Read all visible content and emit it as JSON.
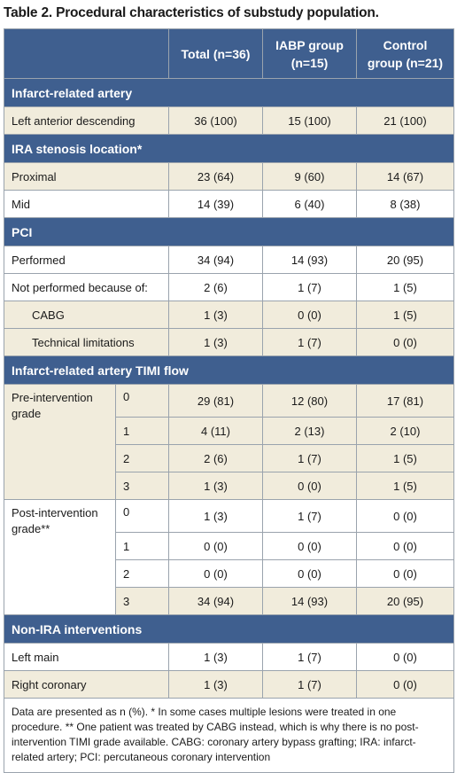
{
  "title": "Table 2. Procedural characteristics of substudy population.",
  "header": {
    "total": "Total (n=36)",
    "iabp": "IABP group (n=15)",
    "control": "Control group (n=21)"
  },
  "sections": {
    "infarct_artery": "Infarct-related artery",
    "ira_stenosis": "IRA stenosis location*",
    "pci": "PCI",
    "timi_flow": "Infarct-related artery TIMI flow",
    "non_ira": "Non-IRA interventions"
  },
  "rows": {
    "lad": {
      "label": "Left anterior descending",
      "total": "36 (100)",
      "iabp": "15 (100)",
      "control": "21 (100)"
    },
    "proximal": {
      "label": "Proximal",
      "total": "23 (64)",
      "iabp": "9 (60)",
      "control": "14 (67)"
    },
    "mid": {
      "label": "Mid",
      "total": "14 (39)",
      "iabp": "6 (40)",
      "control": "8 (38)"
    },
    "performed": {
      "label": "Performed",
      "total": "34 (94)",
      "iabp": "14 (93)",
      "control": "20 (95)"
    },
    "not_performed": {
      "label": "Not performed because of:",
      "total": "2 (6)",
      "iabp": "1 (7)",
      "control": "1 (5)"
    },
    "cabg": {
      "label": "CABG",
      "total": "1 (3)",
      "iabp": "0 (0)",
      "control": "1 (5)"
    },
    "tech": {
      "label": "Technical limitations",
      "total": "1 (3)",
      "iabp": "1 (7)",
      "control": "0 (0)"
    },
    "left_main": {
      "label": "Left main",
      "total": "1 (3)",
      "iabp": "1 (7)",
      "control": "0 (0)"
    },
    "right_coronary": {
      "label": "Right coronary",
      "total": "1 (3)",
      "iabp": "1 (7)",
      "control": "0 (0)"
    }
  },
  "timi": {
    "pre": {
      "label": "Pre-intervention grade",
      "grades": [
        {
          "grade": "0",
          "total": "29 (81)",
          "iabp": "12 (80)",
          "control": "17 (81)"
        },
        {
          "grade": "1",
          "total": "4 (11)",
          "iabp": "2 (13)",
          "control": "2 (10)"
        },
        {
          "grade": "2",
          "total": "2 (6)",
          "iabp": "1 (7)",
          "control": "1 (5)"
        },
        {
          "grade": "3",
          "total": "1 (3)",
          "iabp": "0 (0)",
          "control": "1 (5)"
        }
      ]
    },
    "post": {
      "label": "Post-intervention grade**",
      "grades": [
        {
          "grade": "0",
          "total": "1 (3)",
          "iabp": "1 (7)",
          "control": "0 (0)"
        },
        {
          "grade": "1",
          "total": "0 (0)",
          "iabp": "0 (0)",
          "control": "0 (0)"
        },
        {
          "grade": "2",
          "total": "0 (0)",
          "iabp": "0 (0)",
          "control": "0 (0)"
        },
        {
          "grade": "3",
          "total": "34 (94)",
          "iabp": "14 (93)",
          "control": "20 (95)"
        }
      ]
    }
  },
  "footnote": "Data are presented as n (%). * In some cases multiple lesions were treated in one procedure. ** One patient was treated by CABG instead, which is why there is no post-intervention TIMI grade available. CABG: coronary artery bypass grafting; IRA: infarct-related artery; PCI: percutaneous coronary intervention"
}
